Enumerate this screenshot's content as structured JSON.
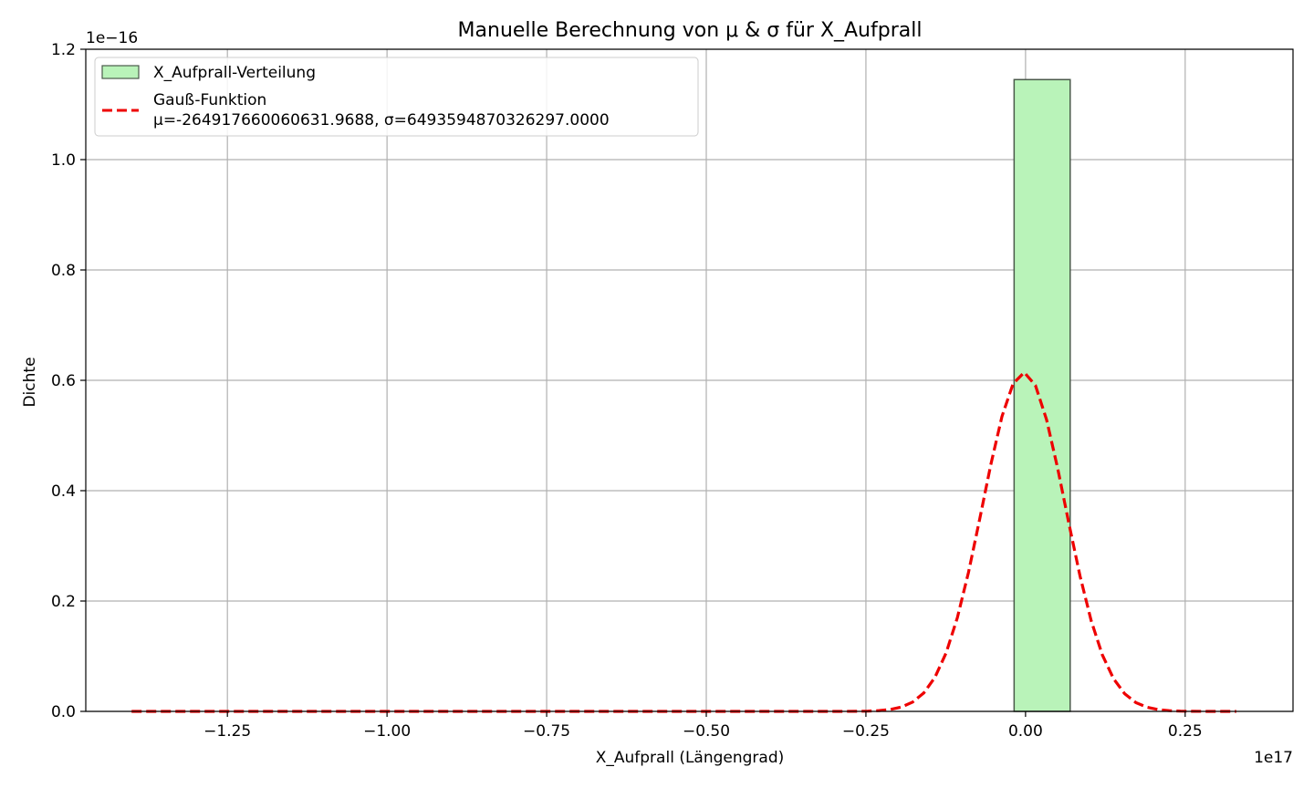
{
  "chart_data": {
    "type": "histogram",
    "title": "Manuelle Berechnung von μ & σ für X_Aufprall",
    "xlabel": "X_Aufprall (Längengrad)",
    "ylabel": "Dichte",
    "x_offset_text": "1e17",
    "y_offset_text": "1e−16",
    "xlim": [
      -1.4718,
      0.4189
    ],
    "ylim": [
      0,
      1.2
    ],
    "x_scale": 1e+17,
    "y_scale": 1e-16,
    "xticks": [
      -1.25,
      -1.0,
      -0.75,
      -0.5,
      -0.25,
      0.0,
      0.25
    ],
    "xtick_labels": [
      "−1.25",
      "−1.00",
      "−0.75",
      "−0.50",
      "−0.25",
      "0.00",
      "0.25"
    ],
    "yticks": [
      0.0,
      0.2,
      0.4,
      0.6,
      0.8,
      1.0,
      1.2
    ],
    "ytick_labels": [
      "0.0",
      "0.2",
      "0.4",
      "0.6",
      "0.8",
      "1.0",
      "1.2"
    ],
    "grid": true,
    "legend_position": "upper-left",
    "histogram": {
      "name": "X_Aufprall-Verteilung",
      "bins": [
        {
          "x0": -0.0179,
          "x1": 0.0699,
          "height": 1.145
        }
      ],
      "color": "#b9f3b9",
      "edgecolor": "#4a5a4a"
    },
    "gaussian": {
      "name_line1": "Gauß-Funktion",
      "name_line2": "μ=-264917660060631.9688, σ=6493594870326297.0000",
      "mu": -0.0026491766,
      "sigma": 0.0649359487,
      "x_range": [
        -1.4,
        0.33
      ],
      "color": "#ee0000",
      "style": "dashed"
    }
  }
}
